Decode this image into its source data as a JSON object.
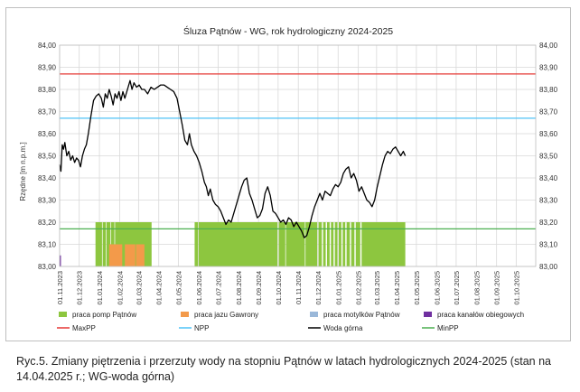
{
  "caption": "Ryc.5. Zmiany piętrzenia i przerzuty wody na stopniu Pątnów w latach hydrologicznych 2024-2025 (stan na 14.04.2025 r.; WG-woda górna)",
  "chart_data": {
    "type": "line",
    "title": "Śluza Pątnów - WG, rok hydrologiczny 2024-2025",
    "ylabel": "Rzędne [m n.p.m.]",
    "ylim": [
      83.0,
      84.0
    ],
    "y_ticks": [
      "83,00",
      "83,10",
      "83,20",
      "83,30",
      "83,40",
      "83,50",
      "83,60",
      "83,70",
      "83,80",
      "83,90",
      "84,00"
    ],
    "x_ticks": [
      "01.11.2023",
      "01.12.2023",
      "01.01.2024",
      "01.02.2024",
      "01.03.2024",
      "01.04.2024",
      "01.05.2024",
      "01.06.2024",
      "01.07.2024",
      "01.08.2024",
      "01.09.2024",
      "01.10.2024",
      "01.11.2024",
      "01.12.2024",
      "01.01.2025",
      "01.02.2025",
      "01.03.2025",
      "01.04.2025",
      "01.05.2025",
      "01.06.2025",
      "01.07.2025",
      "01.08.2025",
      "01.09.2025",
      "01.10.2025"
    ],
    "x_tick_dates": [
      "2023-11-01",
      "2023-12-01",
      "2024-01-01",
      "2024-02-01",
      "2024-03-01",
      "2024-04-01",
      "2024-05-01",
      "2024-06-01",
      "2024-07-01",
      "2024-08-01",
      "2024-09-01",
      "2024-10-01",
      "2024-11-01",
      "2024-12-01",
      "2025-01-01",
      "2025-02-01",
      "2025-03-01",
      "2025-04-01",
      "2025-05-01",
      "2025-06-01",
      "2025-07-01",
      "2025-08-01",
      "2025-09-01",
      "2025-10-01"
    ],
    "x_range": [
      "2023-11-01",
      "2025-10-31"
    ],
    "grid": true,
    "legend_position": "bottom",
    "series": [
      {
        "name": "MaxPP",
        "kind": "hline",
        "value": 83.87,
        "color": "#e53935"
      },
      {
        "name": "NPP",
        "kind": "hline",
        "value": 83.67,
        "color": "#4fc3f7"
      },
      {
        "name": "MinPP",
        "kind": "hline",
        "value": 83.17,
        "color": "#4caf50"
      },
      {
        "name": "Woda górna",
        "kind": "line",
        "color": "#000000",
        "points": [
          [
            "2023-11-01",
            83.46
          ],
          [
            "2023-11-03",
            83.43
          ],
          [
            "2023-11-05",
            83.55
          ],
          [
            "2023-11-07",
            83.53
          ],
          [
            "2023-11-09",
            83.56
          ],
          [
            "2023-11-12",
            83.5
          ],
          [
            "2023-11-15",
            83.52
          ],
          [
            "2023-11-18",
            83.48
          ],
          [
            "2023-11-21",
            83.5
          ],
          [
            "2023-11-24",
            83.47
          ],
          [
            "2023-11-27",
            83.49
          ],
          [
            "2023-11-30",
            83.48
          ],
          [
            "2023-12-03",
            83.45
          ],
          [
            "2023-12-06",
            83.5
          ],
          [
            "2023-12-09",
            83.53
          ],
          [
            "2023-12-12",
            83.55
          ],
          [
            "2023-12-15",
            83.6
          ],
          [
            "2023-12-19",
            83.68
          ],
          [
            "2023-12-23",
            83.75
          ],
          [
            "2023-12-27",
            83.77
          ],
          [
            "2023-12-31",
            83.78
          ],
          [
            "2024-01-04",
            83.76
          ],
          [
            "2024-01-07",
            83.72
          ],
          [
            "2024-01-10",
            83.78
          ],
          [
            "2024-01-13",
            83.76
          ],
          [
            "2024-01-16",
            83.8
          ],
          [
            "2024-01-19",
            83.77
          ],
          [
            "2024-01-22",
            83.73
          ],
          [
            "2024-01-25",
            83.78
          ],
          [
            "2024-01-28",
            83.76
          ],
          [
            "2024-01-31",
            83.79
          ],
          [
            "2024-02-03",
            83.75
          ],
          [
            "2024-02-06",
            83.79
          ],
          [
            "2024-02-09",
            83.76
          ],
          [
            "2024-02-13",
            83.8
          ],
          [
            "2024-02-17",
            83.84
          ],
          [
            "2024-02-20",
            83.8
          ],
          [
            "2024-02-23",
            83.83
          ],
          [
            "2024-02-27",
            83.81
          ],
          [
            "2024-03-02",
            83.82
          ],
          [
            "2024-03-06",
            83.8
          ],
          [
            "2024-03-10",
            83.8
          ],
          [
            "2024-03-15",
            83.78
          ],
          [
            "2024-03-20",
            83.81
          ],
          [
            "2024-03-25",
            83.8
          ],
          [
            "2024-03-30",
            83.81
          ],
          [
            "2024-04-04",
            83.82
          ],
          [
            "2024-04-09",
            83.82
          ],
          [
            "2024-04-14",
            83.81
          ],
          [
            "2024-04-19",
            83.8
          ],
          [
            "2024-04-24",
            83.79
          ],
          [
            "2024-04-29",
            83.76
          ],
          [
            "2024-05-03",
            83.7
          ],
          [
            "2024-05-07",
            83.64
          ],
          [
            "2024-05-11",
            83.57
          ],
          [
            "2024-05-15",
            83.55
          ],
          [
            "2024-05-18",
            83.6
          ],
          [
            "2024-05-21",
            83.55
          ],
          [
            "2024-05-25",
            83.52
          ],
          [
            "2024-05-29",
            83.5
          ],
          [
            "2024-06-02",
            83.47
          ],
          [
            "2024-06-06",
            83.43
          ],
          [
            "2024-06-10",
            83.38
          ],
          [
            "2024-06-13",
            83.36
          ],
          [
            "2024-06-16",
            83.32
          ],
          [
            "2024-06-19",
            83.35
          ],
          [
            "2024-06-23",
            83.3
          ],
          [
            "2024-06-27",
            83.28
          ],
          [
            "2024-07-01",
            83.27
          ],
          [
            "2024-07-05",
            83.25
          ],
          [
            "2024-07-09",
            83.22
          ],
          [
            "2024-07-13",
            83.19
          ],
          [
            "2024-07-17",
            83.21
          ],
          [
            "2024-07-21",
            83.2
          ],
          [
            "2024-07-25",
            83.24
          ],
          [
            "2024-07-29",
            83.28
          ],
          [
            "2024-08-02",
            83.32
          ],
          [
            "2024-08-06",
            83.36
          ],
          [
            "2024-08-10",
            83.39
          ],
          [
            "2024-08-14",
            83.4
          ],
          [
            "2024-08-18",
            83.33
          ],
          [
            "2024-08-22",
            83.3
          ],
          [
            "2024-08-26",
            83.26
          ],
          [
            "2024-08-30",
            83.22
          ],
          [
            "2024-09-03",
            83.23
          ],
          [
            "2024-09-07",
            83.26
          ],
          [
            "2024-09-11",
            83.33
          ],
          [
            "2024-09-15",
            83.36
          ],
          [
            "2024-09-19",
            83.32
          ],
          [
            "2024-09-23",
            83.25
          ],
          [
            "2024-09-27",
            83.24
          ],
          [
            "2024-10-01",
            83.22
          ],
          [
            "2024-10-05",
            83.2
          ],
          [
            "2024-10-09",
            83.21
          ],
          [
            "2024-10-13",
            83.19
          ],
          [
            "2024-10-17",
            83.22
          ],
          [
            "2024-10-21",
            83.21
          ],
          [
            "2024-10-25",
            83.18
          ],
          [
            "2024-10-29",
            83.2
          ],
          [
            "2024-11-02",
            83.18
          ],
          [
            "2024-11-06",
            83.16
          ],
          [
            "2024-11-10",
            83.13
          ],
          [
            "2024-11-14",
            83.14
          ],
          [
            "2024-11-18",
            83.18
          ],
          [
            "2024-11-22",
            83.23
          ],
          [
            "2024-11-26",
            83.27
          ],
          [
            "2024-11-30",
            83.3
          ],
          [
            "2024-12-04",
            83.33
          ],
          [
            "2024-12-08",
            83.3
          ],
          [
            "2024-12-12",
            83.34
          ],
          [
            "2024-12-16",
            83.33
          ],
          [
            "2024-12-20",
            83.32
          ],
          [
            "2024-12-24",
            83.35
          ],
          [
            "2024-12-28",
            83.37
          ],
          [
            "2025-01-01",
            83.36
          ],
          [
            "2025-01-05",
            83.38
          ],
          [
            "2025-01-09",
            83.42
          ],
          [
            "2025-01-13",
            83.44
          ],
          [
            "2025-01-17",
            83.45
          ],
          [
            "2025-01-21",
            83.4
          ],
          [
            "2025-01-25",
            83.42
          ],
          [
            "2025-01-29",
            83.39
          ],
          [
            "2025-02-02",
            83.34
          ],
          [
            "2025-02-06",
            83.36
          ],
          [
            "2025-02-10",
            83.33
          ],
          [
            "2025-02-14",
            83.3
          ],
          [
            "2025-02-18",
            83.29
          ],
          [
            "2025-02-22",
            83.27
          ],
          [
            "2025-02-26",
            83.3
          ],
          [
            "2025-03-02",
            83.36
          ],
          [
            "2025-03-06",
            83.41
          ],
          [
            "2025-03-10",
            83.46
          ],
          [
            "2025-03-14",
            83.5
          ],
          [
            "2025-03-18",
            83.52
          ],
          [
            "2025-03-22",
            83.51
          ],
          [
            "2025-03-26",
            83.53
          ],
          [
            "2025-03-30",
            83.54
          ],
          [
            "2025-04-03",
            83.52
          ],
          [
            "2025-04-07",
            83.5
          ],
          [
            "2025-04-11",
            83.52
          ],
          [
            "2025-04-14",
            83.5
          ]
        ]
      }
    ],
    "bars": [
      {
        "name": "praca pomp Pątnów",
        "color": "#8dc63f",
        "top": 83.2,
        "ranges": [
          [
            "2023-12-26",
            "2024-01-05"
          ],
          [
            "2024-01-06",
            "2024-01-11"
          ],
          [
            "2024-01-12",
            "2024-01-18"
          ],
          [
            "2024-01-19",
            "2024-01-24"
          ],
          [
            "2024-01-25",
            "2024-03-21"
          ],
          [
            "2024-05-26",
            "2024-05-31"
          ],
          [
            "2024-06-01",
            "2024-09-30"
          ],
          [
            "2024-10-02",
            "2024-10-12"
          ],
          [
            "2024-10-13",
            "2024-11-11"
          ],
          [
            "2024-11-12",
            "2024-11-30"
          ],
          [
            "2024-12-02",
            "2024-12-07"
          ],
          [
            "2024-12-09",
            "2024-12-13"
          ],
          [
            "2024-12-15",
            "2024-12-19"
          ],
          [
            "2024-12-21",
            "2024-12-25"
          ],
          [
            "2024-12-27",
            "2024-12-31"
          ],
          [
            "2025-01-02",
            "2025-01-06"
          ],
          [
            "2025-01-08",
            "2025-01-12"
          ],
          [
            "2025-01-14",
            "2025-01-19"
          ],
          [
            "2025-01-21",
            "2025-01-26"
          ],
          [
            "2025-01-28",
            "2025-02-04"
          ],
          [
            "2025-02-06",
            "2025-04-14"
          ]
        ]
      },
      {
        "name": "praca jazu Gawrony",
        "color": "#f39a4a",
        "top": 83.1,
        "ranges": [
          [
            "2024-01-16",
            "2024-02-05"
          ],
          [
            "2024-02-09",
            "2024-02-25"
          ],
          [
            "2024-02-26",
            "2024-03-10"
          ]
        ]
      },
      {
        "name": "praca motylków Pątnów",
        "color": "#9ab8d9",
        "top": 83.0,
        "ranges": []
      },
      {
        "name": "praca kanałów obiegowych",
        "color": "#7030a0",
        "top": 83.05,
        "ranges": [
          [
            "2023-11-01",
            "2023-11-03"
          ]
        ]
      }
    ],
    "legend": [
      {
        "label": "praca pomp Pątnów",
        "swatch": "box",
        "color": "#8dc63f"
      },
      {
        "label": "praca jazu Gawrony",
        "swatch": "box",
        "color": "#f39a4a"
      },
      {
        "label": "praca motylków Pątnów",
        "swatch": "box",
        "color": "#9ab8d9"
      },
      {
        "label": "praca kanałów obiegowych",
        "swatch": "box",
        "color": "#7030a0"
      },
      {
        "label": "MaxPP",
        "swatch": "line",
        "color": "#e53935"
      },
      {
        "label": "NPP",
        "swatch": "line",
        "color": "#4fc3f7"
      },
      {
        "label": "Woda górna",
        "swatch": "line",
        "color": "#000000"
      },
      {
        "label": "MinPP",
        "swatch": "line",
        "color": "#4caf50"
      }
    ]
  }
}
